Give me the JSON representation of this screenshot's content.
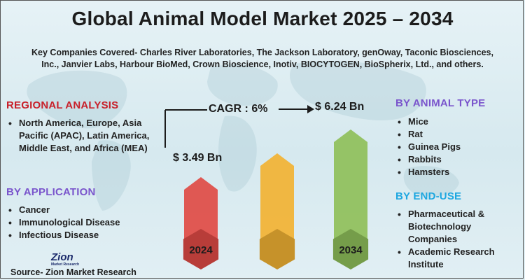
{
  "title": "Global Animal Model Market 2025 – 2034",
  "subtitle": "Key Companies Covered- Charles River Laboratories, The Jackson Laboratory, genOway, Taconic Biosciences, Inc., Janvier Labs, Harbour BioMed, Crown Bioscience, Inotiv, BIOCYTOGEN, BioSpherix, Ltd., and others.",
  "regional": {
    "heading": "REGIONAL ANALYSIS",
    "items": [
      "North America, Europe, Asia Pacific (APAC), Latin America, Middle East, and Africa (MEA)"
    ]
  },
  "application": {
    "heading": "BY APPLICATION",
    "items": [
      "Cancer",
      "Immunological Disease",
      "Infectious Disease"
    ]
  },
  "animal_type": {
    "heading": "BY ANIMAL TYPE",
    "items": [
      "Mice",
      "Rat",
      "Guinea Pigs",
      "Rabbits",
      "Hamsters"
    ]
  },
  "end_use": {
    "heading": "BY END-USE",
    "items": [
      "Pharmaceutical & Biotechnology Companies",
      "Academic Research Institute"
    ]
  },
  "chart_data": {
    "type": "bar",
    "categories": [
      "2024",
      "",
      "2034"
    ],
    "values": [
      3.49,
      null,
      6.24
    ],
    "value_labels": [
      "$ 3.49 Bn",
      "",
      "$ 6.24 Bn"
    ],
    "cagr_label": "CAGR : 6%",
    "bar_colors": [
      "#e04b45",
      "#f2b233",
      "#8fbf5a"
    ],
    "grid": false
  },
  "logo": {
    "word": "Zion",
    "sub": "Market Research"
  },
  "source": "Source- Zion Market Research"
}
